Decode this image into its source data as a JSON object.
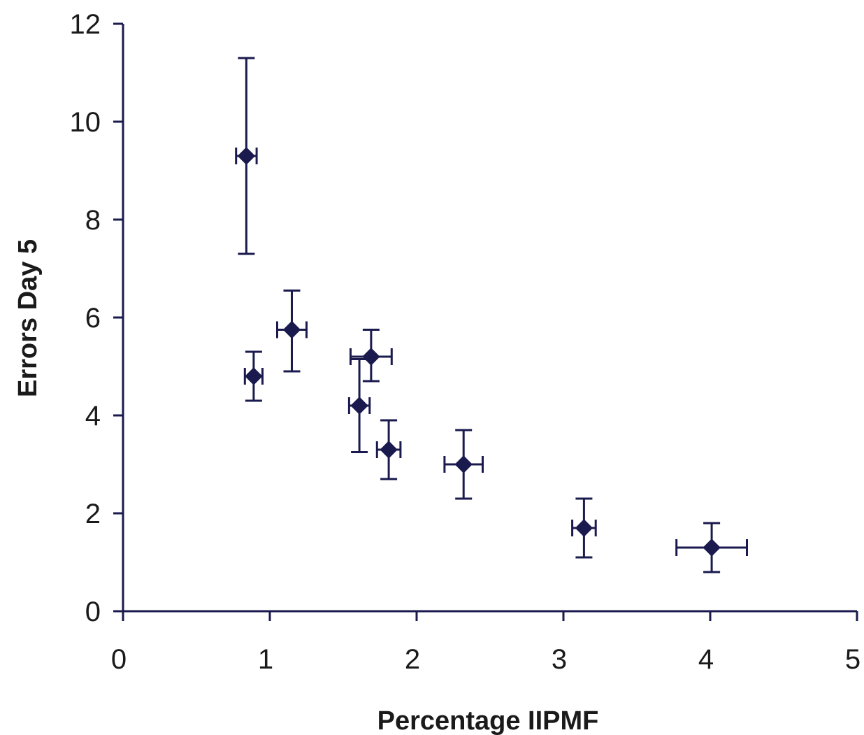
{
  "chart_data": {
    "type": "scatter",
    "title": "",
    "xlabel": "Percentage IIPMF",
    "ylabel": "Errors Day 5",
    "xlim": [
      0,
      5
    ],
    "ylim": [
      0,
      12
    ],
    "x_ticks": [
      0,
      1,
      2,
      3,
      4,
      5
    ],
    "y_ticks": [
      0,
      2,
      4,
      6,
      8,
      10,
      12
    ],
    "grid": false,
    "legend": "none",
    "marker": "diamond",
    "color": "#1a1a4e",
    "series": [
      {
        "points": [
          {
            "x": 0.84,
            "y": 9.3,
            "x_err": 0.07,
            "y_err_low": 2.0,
            "y_err_high": 2.0
          },
          {
            "x": 0.89,
            "y": 4.8,
            "x_err": 0.06,
            "y_err_low": 0.5,
            "y_err_high": 0.5
          },
          {
            "x": 1.15,
            "y": 5.75,
            "x_err": 0.1,
            "y_err_low": 0.85,
            "y_err_high": 0.8
          },
          {
            "x": 1.69,
            "y": 5.2,
            "x_err": 0.14,
            "y_err_low": 0.5,
            "y_err_high": 0.55
          },
          {
            "x": 1.61,
            "y": 4.2,
            "x_err": 0.07,
            "y_err_low": 0.95,
            "y_err_high": 0.95
          },
          {
            "x": 1.81,
            "y": 3.3,
            "x_err": 0.08,
            "y_err_low": 0.6,
            "y_err_high": 0.6
          },
          {
            "x": 2.32,
            "y": 3.0,
            "x_err": 0.13,
            "y_err_low": 0.7,
            "y_err_high": 0.7
          },
          {
            "x": 3.14,
            "y": 1.7,
            "x_err": 0.08,
            "y_err_low": 0.6,
            "y_err_high": 0.6
          },
          {
            "x": 4.01,
            "y": 1.3,
            "x_err": 0.24,
            "y_err_low": 0.5,
            "y_err_high": 0.5
          }
        ]
      }
    ]
  }
}
